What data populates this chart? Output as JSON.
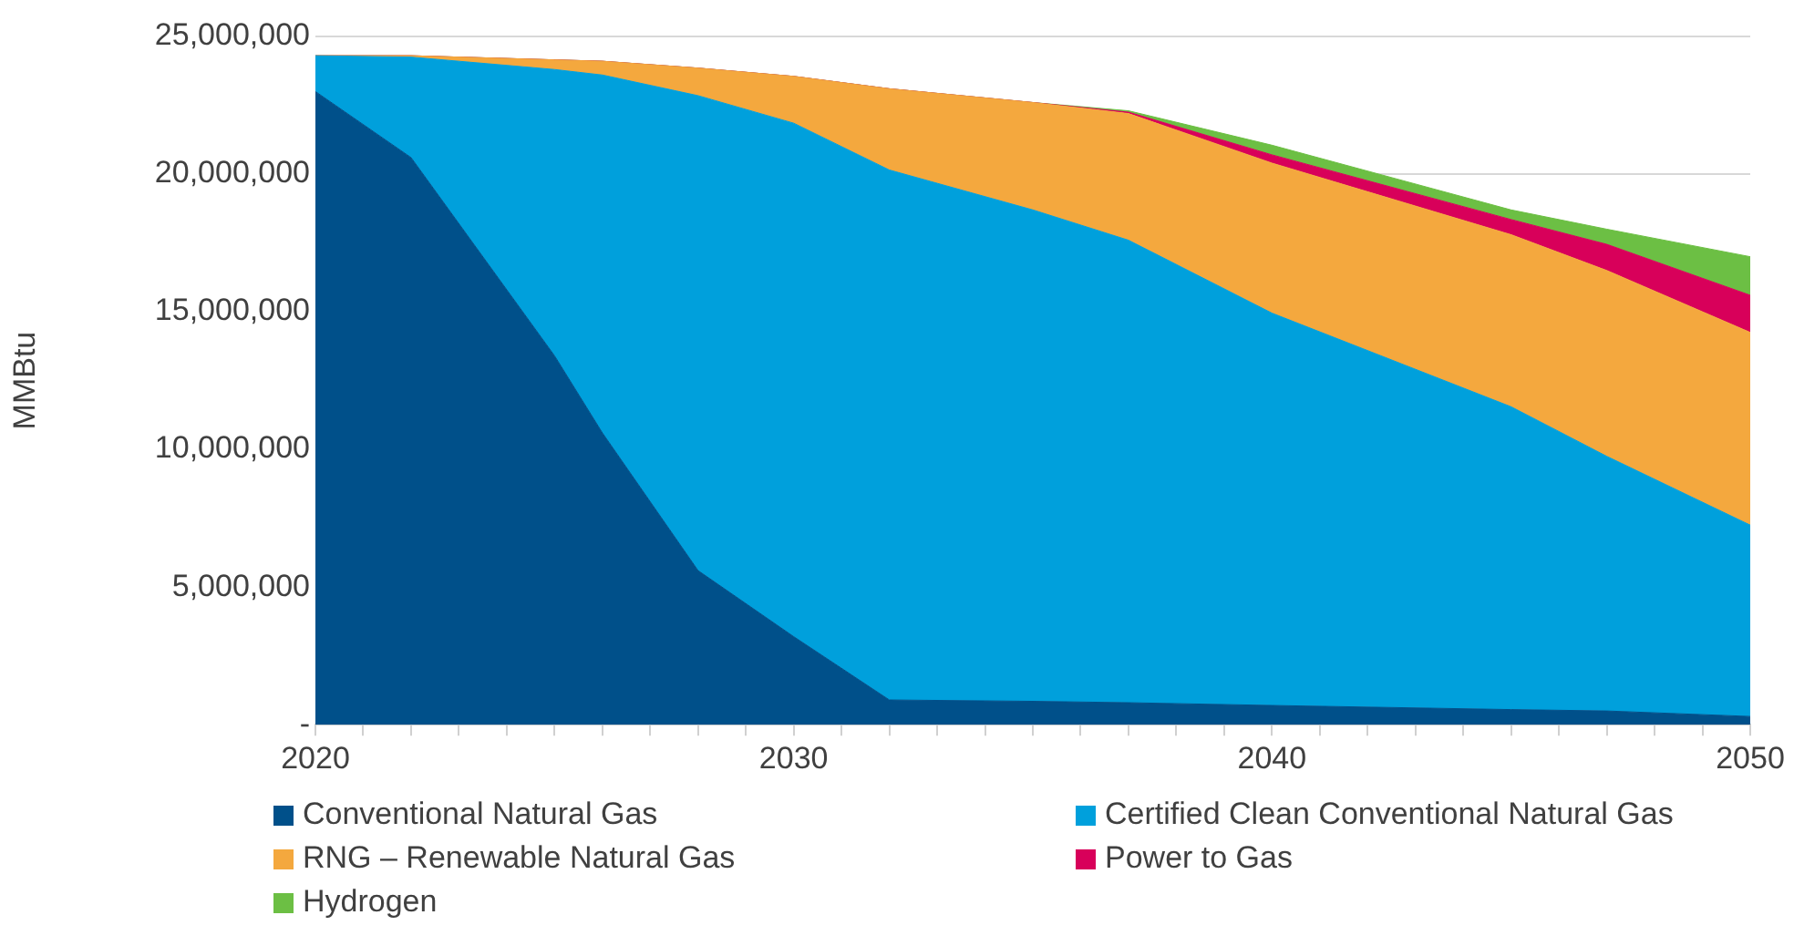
{
  "chart_data": {
    "type": "area",
    "stacked": true,
    "ylabel": "MMBtu",
    "x": [
      2020,
      2022,
      2025,
      2026,
      2028,
      2030,
      2032,
      2035,
      2037,
      2040,
      2045,
      2047,
      2050
    ],
    "series": [
      {
        "name": "Conventional Natural Gas",
        "color": "#00508a",
        "values": [
          23000000,
          20600000,
          13400000,
          10600000,
          5600000,
          3200000,
          900000,
          850000,
          800000,
          700000,
          550000,
          500000,
          300000
        ]
      },
      {
        "name": "Certified Clean Conventional Natural Gas",
        "color": "#00a0dc",
        "values": [
          1300000,
          3650000,
          10400000,
          13000000,
          17250000,
          18650000,
          19250000,
          17850000,
          16800000,
          14250000,
          11000000,
          9250000,
          6950000
        ]
      },
      {
        "name": "RNG – Renewable Natural Gas",
        "color": "#f4a83e",
        "values": [
          0,
          50000,
          350000,
          500000,
          1000000,
          1700000,
          2950000,
          3900000,
          4600000,
          5450000,
          6250000,
          6750000,
          7000000
        ]
      },
      {
        "name": "Power to Gas",
        "color": "#d8005a",
        "values": [
          0,
          0,
          0,
          0,
          0,
          0,
          0,
          0,
          50000,
          300000,
          550000,
          950000,
          1350000
        ]
      },
      {
        "name": "Hydrogen",
        "color": "#6cbf44",
        "values": [
          0,
          0,
          0,
          0,
          0,
          0,
          0,
          0,
          50000,
          350000,
          350000,
          550000,
          1400000
        ]
      }
    ],
    "xlim": [
      2020,
      2050
    ],
    "xticks": [
      2020,
      {
        "value": 2021,
        "label": null
      },
      {
        "value": 2022,
        "label": null
      },
      {
        "value": 2023,
        "label": null
      },
      {
        "value": 2024,
        "label": null
      },
      {
        "value": 2025,
        "label": null
      },
      {
        "value": 2026,
        "label": null
      },
      {
        "value": 2027,
        "label": null
      },
      {
        "value": 2028,
        "label": null
      },
      {
        "value": 2029,
        "label": null
      },
      2030,
      {
        "value": 2031,
        "label": null
      },
      {
        "value": 2032,
        "label": null
      },
      {
        "value": 2033,
        "label": null
      },
      {
        "value": 2034,
        "label": null
      },
      {
        "value": 2035,
        "label": null
      },
      {
        "value": 2036,
        "label": null
      },
      {
        "value": 2037,
        "label": null
      },
      {
        "value": 2038,
        "label": null
      },
      {
        "value": 2039,
        "label": null
      },
      2040,
      {
        "value": 2041,
        "label": null
      },
      {
        "value": 2042,
        "label": null
      },
      {
        "value": 2043,
        "label": null
      },
      {
        "value": 2044,
        "label": null
      },
      {
        "value": 2045,
        "label": null
      },
      {
        "value": 2046,
        "label": null
      },
      {
        "value": 2047,
        "label": null
      },
      {
        "value": 2048,
        "label": null
      },
      {
        "value": 2049,
        "label": null
      },
      2050
    ],
    "ylim": [
      0,
      25000000
    ],
    "yticks": [
      {
        "value": 0,
        "label": "-"
      },
      {
        "value": 5000000,
        "label": "5,000,000"
      },
      {
        "value": 10000000,
        "label": "10,000,000"
      },
      {
        "value": 15000000,
        "label": "15,000,000"
      },
      {
        "value": 20000000,
        "label": "20,000,000"
      },
      {
        "value": 25000000,
        "label": "25,000,000"
      }
    ],
    "grid": "y",
    "legend": "bottom"
  }
}
